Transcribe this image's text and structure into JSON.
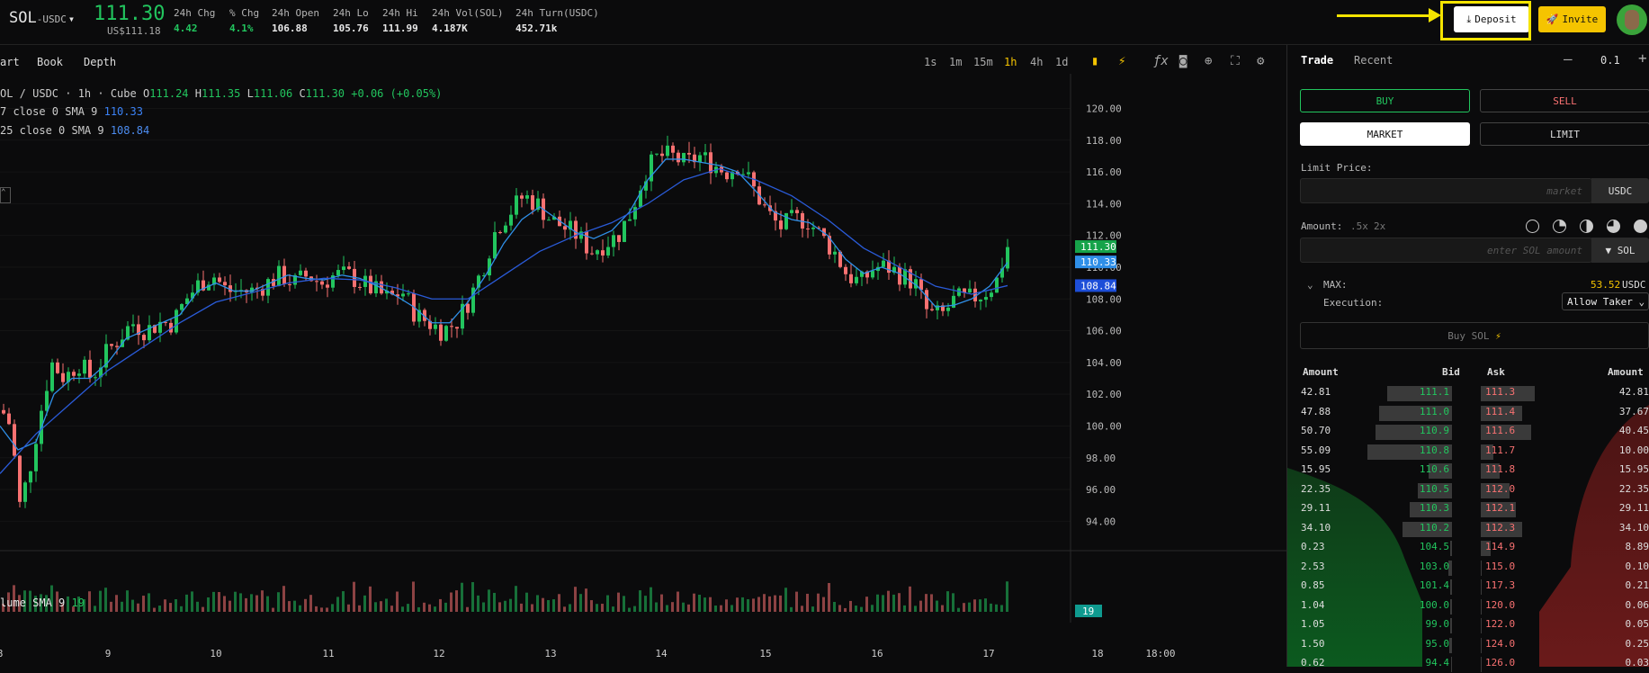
{
  "header": {
    "symbol": "SOL",
    "quote": "USDC",
    "last_price": "111.30",
    "usd_price": "US$111.18",
    "stats": [
      {
        "label": "24h Chg",
        "value": "4.42",
        "positive": true
      },
      {
        "label": "% Chg",
        "value": "4.1%",
        "positive": true
      },
      {
        "label": "24h Open",
        "value": "106.88",
        "positive": false
      },
      {
        "label": "24h Lo",
        "value": "105.76",
        "positive": false
      },
      {
        "label": "24h Hi",
        "value": "111.99",
        "positive": false
      },
      {
        "label": "24h Vol(SOL)",
        "value": "4.187K",
        "positive": false
      },
      {
        "label": "24h Turn(USDC)",
        "value": "452.71k",
        "positive": false
      }
    ],
    "deposit_label": "Deposit",
    "invite_label": "Invite"
  },
  "chart_tabs": [
    "art",
    "Book",
    "Depth"
  ],
  "timeframes": [
    "1s",
    "1m",
    "15m",
    "1h",
    "4h",
    "1d"
  ],
  "active_timeframe": "1h",
  "legend": {
    "pair": "OL / USDC · 1h · Cube",
    "o_label": "O",
    "o": "111.24",
    "h_label": "H",
    "h": "111.35",
    "l_label": "L",
    "l": "111.06",
    "c_label": "C",
    "c": "111.30",
    "change": "+0.06 (+0.05%)",
    "sma1_label": "7 close 0 SMA 9",
    "sma1_value": "110.33",
    "sma2_label": "25 close 0 SMA 9",
    "sma2_value": "108.84",
    "volume_label": "lume SMA 9",
    "volume_value": "19"
  },
  "chart_data": {
    "type": "candlestick",
    "y_ticks": [
      "120.00",
      "118.00",
      "116.00",
      "114.00",
      "112.00",
      "110.00",
      "108.00",
      "106.00",
      "104.00",
      "102.00",
      "100.00",
      "98.00",
      "96.00",
      "94.00"
    ],
    "ylim": [
      93.0,
      121.5
    ],
    "x_ticks": [
      "8",
      "9",
      "10",
      "11",
      "12",
      "13",
      "14",
      "15",
      "16",
      "17",
      "18",
      "18:00"
    ],
    "price_tags": [
      {
        "value": "111.30",
        "color": "#16a34a"
      },
      {
        "value": "110.33",
        "color": "#2f8fe8"
      },
      {
        "value": "108.84",
        "color": "#1d4ed8"
      }
    ],
    "volume_tag": "19",
    "close_path": [
      [
        0,
        101
      ],
      [
        10,
        100
      ],
      [
        20,
        95
      ],
      [
        30,
        97
      ],
      [
        40,
        100
      ],
      [
        55,
        104
      ],
      [
        70,
        103
      ],
      [
        85,
        104
      ],
      [
        100,
        103
      ],
      [
        115,
        104.5
      ],
      [
        130,
        105.5
      ],
      [
        145,
        106.5
      ],
      [
        160,
        106
      ],
      [
        175,
        106.5
      ],
      [
        190,
        106.5
      ],
      [
        205,
        108
      ],
      [
        220,
        109
      ],
      [
        235,
        109.5
      ],
      [
        250,
        108.5
      ],
      [
        265,
        108.5
      ],
      [
        280,
        108.5
      ],
      [
        295,
        109
      ],
      [
        310,
        109.5
      ],
      [
        325,
        109
      ],
      [
        340,
        109.5
      ],
      [
        355,
        109
      ],
      [
        370,
        109.5
      ],
      [
        385,
        109.5
      ],
      [
        400,
        109
      ],
      [
        415,
        108.5
      ],
      [
        430,
        108
      ],
      [
        445,
        108.5
      ],
      [
        460,
        107
      ],
      [
        475,
        106.5
      ],
      [
        490,
        106
      ],
      [
        505,
        106.5
      ],
      [
        520,
        108
      ],
      [
        535,
        110
      ],
      [
        550,
        112.5
      ],
      [
        565,
        113.5
      ],
      [
        580,
        114.5
      ],
      [
        595,
        114
      ],
      [
        610,
        113
      ],
      [
        625,
        112.5
      ],
      [
        640,
        112
      ],
      [
        655,
        111
      ],
      [
        670,
        111.5
      ],
      [
        685,
        112
      ],
      [
        700,
        113.5
      ],
      [
        715,
        116
      ],
      [
        730,
        117
      ],
      [
        745,
        117
      ],
      [
        760,
        116.5
      ],
      [
        775,
        117
      ],
      [
        790,
        116.5
      ],
      [
        805,
        116
      ],
      [
        820,
        116.5
      ],
      [
        835,
        115
      ],
      [
        850,
        113.5
      ],
      [
        865,
        112.5
      ],
      [
        880,
        113
      ],
      [
        895,
        113
      ],
      [
        910,
        112
      ],
      [
        925,
        111
      ],
      [
        940,
        109.5
      ],
      [
        955,
        109
      ],
      [
        970,
        110
      ],
      [
        985,
        110
      ],
      [
        1000,
        109.5
      ],
      [
        1015,
        109
      ],
      [
        1030,
        107
      ],
      [
        1045,
        107
      ],
      [
        1060,
        108
      ],
      [
        1075,
        108
      ],
      [
        1090,
        108.3
      ],
      [
        1105,
        109
      ],
      [
        1118,
        111.3
      ]
    ],
    "sma_fast": [
      [
        0,
        100
      ],
      [
        20,
        98.5
      ],
      [
        40,
        99
      ],
      [
        60,
        102
      ],
      [
        80,
        103
      ],
      [
        100,
        103
      ],
      [
        120,
        104
      ],
      [
        140,
        105.5
      ],
      [
        160,
        106
      ],
      [
        180,
        106.5
      ],
      [
        200,
        107
      ],
      [
        220,
        108.5
      ],
      [
        240,
        109
      ],
      [
        260,
        108.5
      ],
      [
        280,
        108.5
      ],
      [
        300,
        109
      ],
      [
        320,
        109.5
      ],
      [
        340,
        109.3
      ],
      [
        360,
        109.2
      ],
      [
        380,
        109.5
      ],
      [
        400,
        109.3
      ],
      [
        420,
        108.8
      ],
      [
        440,
        108.2
      ],
      [
        460,
        107.5
      ],
      [
        480,
        106.5
      ],
      [
        500,
        106.5
      ],
      [
        520,
        107.8
      ],
      [
        540,
        109.5
      ],
      [
        560,
        111.5
      ],
      [
        580,
        113
      ],
      [
        600,
        113.8
      ],
      [
        620,
        113
      ],
      [
        640,
        112.2
      ],
      [
        660,
        111.8
      ],
      [
        680,
        112.3
      ],
      [
        700,
        113.5
      ],
      [
        720,
        115.5
      ],
      [
        740,
        116.8
      ],
      [
        760,
        116.8
      ],
      [
        780,
        116.6
      ],
      [
        800,
        116.4
      ],
      [
        820,
        116
      ],
      [
        840,
        114.8
      ],
      [
        860,
        113.5
      ],
      [
        880,
        113
      ],
      [
        900,
        112.8
      ],
      [
        920,
        112
      ],
      [
        940,
        110.5
      ],
      [
        960,
        109.6
      ],
      [
        980,
        110
      ],
      [
        1000,
        109.6
      ],
      [
        1020,
        108.8
      ],
      [
        1040,
        107.5
      ],
      [
        1060,
        107.6
      ],
      [
        1080,
        108
      ],
      [
        1100,
        108.8
      ],
      [
        1120,
        110.3
      ]
    ],
    "sma_slow": [
      [
        0,
        97
      ],
      [
        40,
        99.5
      ],
      [
        80,
        101.5
      ],
      [
        120,
        103.5
      ],
      [
        160,
        105
      ],
      [
        200,
        106.5
      ],
      [
        240,
        107.8
      ],
      [
        280,
        108.4
      ],
      [
        320,
        109
      ],
      [
        360,
        109.3
      ],
      [
        400,
        109.2
      ],
      [
        440,
        108.7
      ],
      [
        480,
        108
      ],
      [
        520,
        108
      ],
      [
        560,
        109.5
      ],
      [
        600,
        111
      ],
      [
        640,
        112
      ],
      [
        680,
        112.8
      ],
      [
        720,
        114
      ],
      [
        760,
        115.5
      ],
      [
        800,
        116.2
      ],
      [
        840,
        115.5
      ],
      [
        880,
        114.5
      ],
      [
        920,
        113
      ],
      [
        960,
        111.2
      ],
      [
        1000,
        110
      ],
      [
        1040,
        108.8
      ],
      [
        1080,
        108.3
      ],
      [
        1120,
        108.84
      ]
    ]
  },
  "panel": {
    "tabs": [
      "Trade",
      "Recent"
    ],
    "size": "0.1",
    "buy_label": "BUY",
    "sell_label": "SELL",
    "market_label": "MARKET",
    "limit_label": "LIMIT",
    "limit_price_label": "Limit Price:",
    "limit_price_placeholder": "market",
    "limit_unit": "USDC",
    "amount_label": "Amount:",
    "amount_mult": [
      ".5x",
      "2x"
    ],
    "amount_placeholder": "enter SOL amount",
    "amount_unit": "SOL",
    "max_label": "MAX:",
    "max_value": "53.52",
    "max_unit": "USDC",
    "execution_label": "Execution:",
    "execution_value": "Allow Taker",
    "submit_label": "Buy SOL"
  },
  "orderbook": {
    "headers": [
      "Amount",
      "Bid",
      "Ask",
      "Amount"
    ],
    "rows": [
      {
        "bamt": "42.81",
        "bid": "111.1",
        "ask": "111.3",
        "aamt": "42.81",
        "bw": 0.85,
        "aw": 0.85
      },
      {
        "bamt": "47.88",
        "bid": "111.0",
        "ask": "111.4",
        "aamt": "37.67",
        "bw": 0.95,
        "aw": 0.65
      },
      {
        "bamt": "50.70",
        "bid": "110.9",
        "ask": "111.6",
        "aamt": "40.45",
        "bw": 1.0,
        "aw": 0.8
      },
      {
        "bamt": "55.09",
        "bid": "110.8",
        "ask": "111.7",
        "aamt": "10.00",
        "bw": 1.1,
        "aw": 0.2
      },
      {
        "bamt": "15.95",
        "bid": "110.6",
        "ask": "111.8",
        "aamt": "15.95",
        "bw": 0.3,
        "aw": 0.3
      },
      {
        "bamt": "22.35",
        "bid": "110.5",
        "ask": "112.0",
        "aamt": "22.35",
        "bw": 0.45,
        "aw": 0.45
      },
      {
        "bamt": "29.11",
        "bid": "110.3",
        "ask": "112.1",
        "aamt": "29.11",
        "bw": 0.55,
        "aw": 0.55
      },
      {
        "bamt": "34.10",
        "bid": "110.2",
        "ask": "112.3",
        "aamt": "34.10",
        "bw": 0.65,
        "aw": 0.65
      },
      {
        "bamt": "0.23",
        "bid": "104.5",
        "ask": "114.9",
        "aamt": "8.89",
        "bw": 0.02,
        "aw": 0.15
      },
      {
        "bamt": "2.53",
        "bid": "103.0",
        "ask": "115.0",
        "aamt": "0.10",
        "bw": 0.05,
        "aw": 0.01
      },
      {
        "bamt": "0.85",
        "bid": "101.4",
        "ask": "117.3",
        "aamt": "0.21",
        "bw": 0.02,
        "aw": 0.01
      },
      {
        "bamt": "1.04",
        "bid": "100.0",
        "ask": "120.0",
        "aamt": "0.06",
        "bw": 0.02,
        "aw": 0.01
      },
      {
        "bamt": "1.05",
        "bid": "99.0",
        "ask": "122.0",
        "aamt": "0.05",
        "bw": 0.02,
        "aw": 0.01
      },
      {
        "bamt": "1.50",
        "bid": "95.0",
        "ask": "124.0",
        "aamt": "0.25",
        "bw": 0.03,
        "aw": 0.01
      },
      {
        "bamt": "0.62",
        "bid": "94.4",
        "ask": "126.0",
        "aamt": "0.03",
        "bw": 0.01,
        "aw": 0.01
      }
    ]
  },
  "colors": {
    "up": "#22c55e",
    "down": "#f87171",
    "accent": "#f5c400",
    "highlight": "#f5e400"
  }
}
